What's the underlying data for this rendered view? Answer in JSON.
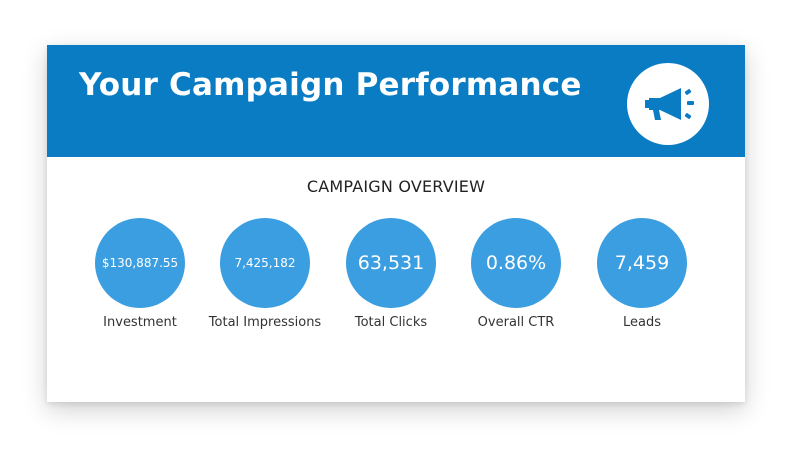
{
  "header": {
    "title": "Your Campaign Performance",
    "icon": "megaphone-icon",
    "color": "#0a7cc4"
  },
  "overview": {
    "title": "CAMPAIGN OVERVIEW",
    "circle_color": "#3b9ee0",
    "metrics": [
      {
        "value": "$130,887.55",
        "label": "Investment"
      },
      {
        "value": "7,425,182",
        "label": "Total Impressions"
      },
      {
        "value": "63,531",
        "label": "Total Clicks"
      },
      {
        "value": "0.86%",
        "label": "Overall CTR"
      },
      {
        "value": "7,459",
        "label": "Leads"
      }
    ]
  }
}
